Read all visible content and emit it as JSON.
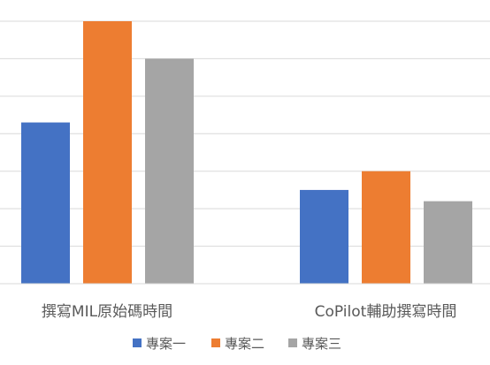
{
  "chart_data": {
    "type": "bar",
    "categories": [
      "撰寫MIL原始碼時間",
      "CoPilot輔助撰寫時間"
    ],
    "series": [
      {
        "name": "專案一",
        "values": [
          4.3,
          2.5
        ],
        "color": "#4472c4"
      },
      {
        "name": "專案二",
        "values": [
          7.0,
          3.0
        ],
        "color": "#ed7d31"
      },
      {
        "name": "專案三",
        "values": [
          6.0,
          2.2
        ],
        "color": "#a5a5a5"
      }
    ],
    "ylim": [
      0,
      7
    ],
    "y_gridlines": 7,
    "grid": true,
    "legend_position": "bottom",
    "title": "",
    "xlabel": "",
    "ylabel": ""
  }
}
